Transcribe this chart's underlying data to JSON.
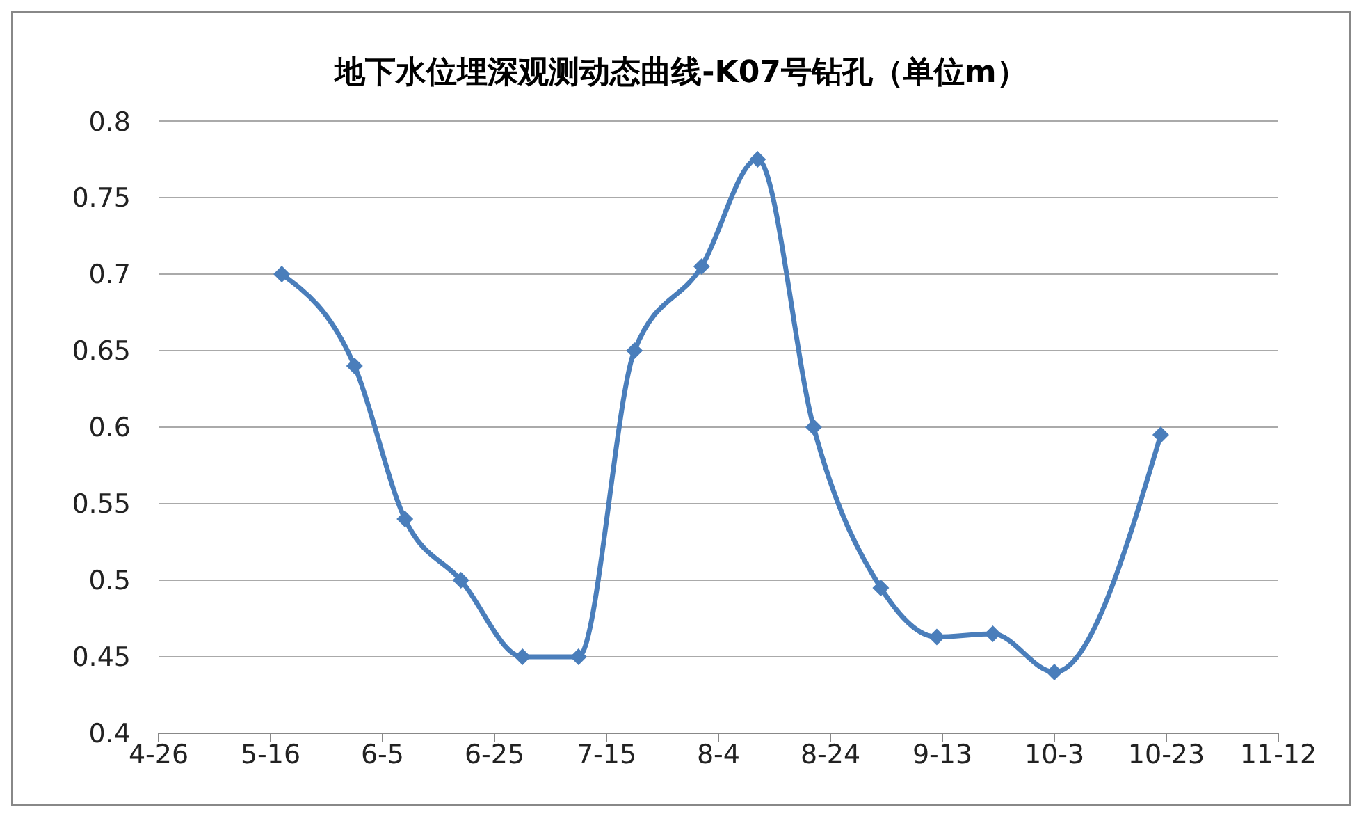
{
  "chart_data": {
    "type": "line",
    "title": "地下水位埋深观测动态曲线-K07号钻孔（单位m）",
    "x": [
      "--05-18",
      "--05-31",
      "--06-09",
      "--06-19",
      "--06-30",
      "--07-10",
      "--07-20",
      "--08-01",
      "--08-11",
      "--08-21",
      "--09-02",
      "--09-12",
      "--09-22",
      "--10-03",
      "--10-22"
    ],
    "series": [
      {
        "color": "#4a7ebb",
        "values": [
          0.7,
          0.64,
          0.54,
          0.5,
          0.45,
          0.45,
          0.65,
          0.705,
          0.775,
          0.6,
          0.495,
          0.463,
          0.465,
          0.44,
          0.595
        ]
      }
    ],
    "xlim": [
      "--04-26",
      "--11-12"
    ],
    "xticks": [
      {
        "value": "--04-26",
        "label": "4-26"
      },
      {
        "value": "--05-16",
        "label": "5-16"
      },
      {
        "value": "--06-05",
        "label": "6-5"
      },
      {
        "value": "--06-25",
        "label": "6-25"
      },
      {
        "value": "--07-15",
        "label": "7-15"
      },
      {
        "value": "--08-04",
        "label": "8-4"
      },
      {
        "value": "--08-24",
        "label": "8-24"
      },
      {
        "value": "--09-13",
        "label": "9-13"
      },
      {
        "value": "--10-03",
        "label": "10-3"
      },
      {
        "value": "--10-23",
        "label": "10-23"
      },
      {
        "value": "--11-12",
        "label": "11-12"
      }
    ],
    "ylim": [
      0.4,
      0.8
    ],
    "yticks": [
      0.4,
      0.45,
      0.5,
      0.55,
      0.6,
      0.65,
      0.7,
      0.75,
      0.8
    ],
    "grid": "y",
    "marker": "diamond",
    "line_style": "solid",
    "legend": false
  }
}
